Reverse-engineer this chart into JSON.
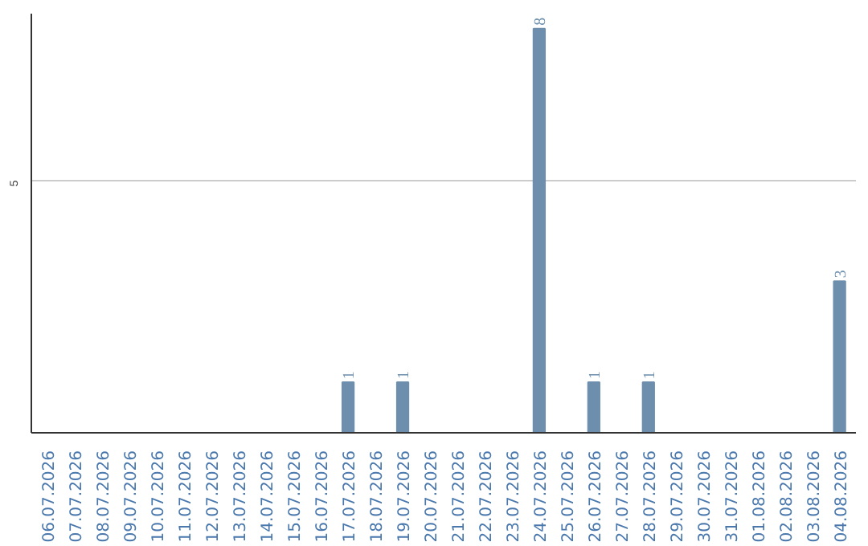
{
  "chart_data": {
    "type": "bar",
    "categories": [
      "06.07.2026",
      "07.07.2026",
      "08.07.2026",
      "09.07.2026",
      "10.07.2026",
      "11.07.2026",
      "12.07.2026",
      "13.07.2026",
      "14.07.2026",
      "15.07.2026",
      "16.07.2026",
      "17.07.2026",
      "18.07.2026",
      "19.07.2026",
      "20.07.2026",
      "21.07.2026",
      "22.07.2026",
      "23.07.2026",
      "24.07.2026",
      "25.07.2026",
      "26.07.2026",
      "27.07.2026",
      "28.07.2026",
      "29.07.2026",
      "30.07.2026",
      "31.07.2026",
      "01.08.2026",
      "02.08.2026",
      "03.08.2026",
      "04.08.2026"
    ],
    "values": [
      0,
      0,
      0,
      0,
      0,
      0,
      0,
      0,
      0,
      0,
      0,
      1,
      0,
      1,
      0,
      0,
      0,
      0,
      8,
      0,
      1,
      0,
      1,
      0,
      0,
      0,
      0,
      0,
      0,
      3
    ],
    "value_labels": [
      null,
      null,
      null,
      null,
      null,
      null,
      null,
      null,
      null,
      null,
      null,
      "1",
      null,
      "1",
      null,
      null,
      null,
      null,
      "8",
      null,
      "1",
      null,
      "1",
      null,
      null,
      null,
      null,
      null,
      null,
      "3"
    ],
    "color": "#6d8fad",
    "ylim": [
      0,
      8.3
    ],
    "yticks": [
      5
    ],
    "grid": "y"
  }
}
